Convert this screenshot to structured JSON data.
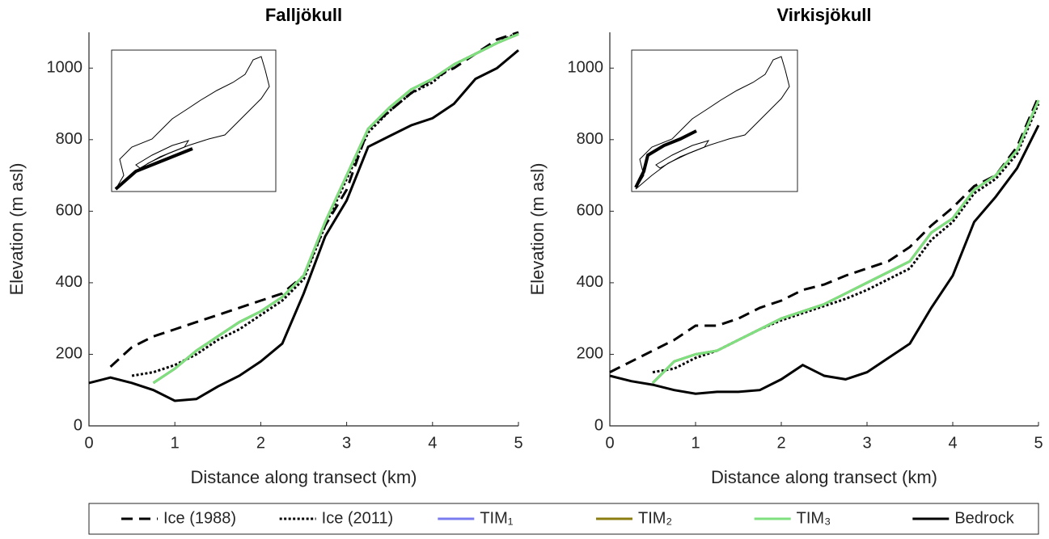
{
  "chart_data": [
    {
      "type": "line",
      "title": "Falljökull",
      "xlabel": "Distance along transect (km)",
      "ylabel": "Elevation (m asl)",
      "xlim": [
        0,
        5
      ],
      "ylim": [
        0,
        1100
      ],
      "xticks": [
        0,
        1,
        2,
        3,
        4,
        5
      ],
      "yticks": [
        0,
        200,
        400,
        600,
        800,
        1000
      ],
      "x": [
        0,
        0.25,
        0.5,
        0.75,
        1,
        1.25,
        1.5,
        1.75,
        2,
        2.25,
        2.5,
        2.75,
        3,
        3.25,
        3.5,
        3.75,
        4,
        4.25,
        4.5,
        4.75,
        5
      ],
      "series": [
        {
          "name": "Ice (1988)",
          "color": "#000000",
          "style": "dashed",
          "values": [
            null,
            165,
            220,
            250,
            270,
            290,
            310,
            330,
            350,
            370,
            420,
            560,
            660,
            830,
            880,
            930,
            970,
            1000,
            1040,
            1080,
            1100
          ]
        },
        {
          "name": "Ice (2011)",
          "color": "#000000",
          "style": "dotted",
          "values": [
            null,
            null,
            140,
            150,
            170,
            200,
            240,
            270,
            310,
            350,
            410,
            560,
            690,
            820,
            880,
            930,
            960,
            1010,
            1040,
            1070,
            1100
          ]
        },
        {
          "name": "TIM₁",
          "color": "#7b7bf0",
          "style": "solid",
          "values": [
            null,
            null,
            null,
            120,
            160,
            210,
            250,
            290,
            320,
            360,
            420,
            570,
            700,
            830,
            890,
            940,
            970,
            1010,
            1040,
            1070,
            1095
          ]
        },
        {
          "name": "TIM₂",
          "color": "#8b7d10",
          "style": "solid",
          "values": [
            null,
            null,
            null,
            120,
            160,
            210,
            250,
            290,
            320,
            360,
            420,
            570,
            700,
            830,
            890,
            940,
            970,
            1010,
            1040,
            1070,
            1095
          ]
        },
        {
          "name": "TIM₃",
          "color": "#7ee07e",
          "style": "solid",
          "values": [
            null,
            null,
            null,
            120,
            160,
            210,
            250,
            290,
            320,
            360,
            420,
            570,
            700,
            830,
            890,
            940,
            970,
            1010,
            1040,
            1070,
            1095
          ]
        },
        {
          "name": "Bedrock",
          "color": "#000000",
          "style": "solid",
          "values": [
            120,
            135,
            120,
            100,
            70,
            75,
            110,
            140,
            180,
            230,
            370,
            530,
            630,
            780,
            810,
            840,
            860,
            900,
            970,
            1000,
            1050
          ]
        }
      ]
    },
    {
      "type": "line",
      "title": "Virkisjökull",
      "xlabel": "Distance along transect (km)",
      "ylabel": "Elevation (m asl)",
      "xlim": [
        0,
        5
      ],
      "ylim": [
        0,
        1100
      ],
      "xticks": [
        0,
        1,
        2,
        3,
        4,
        5
      ],
      "yticks": [
        0,
        200,
        400,
        600,
        800,
        1000
      ],
      "x": [
        0,
        0.25,
        0.5,
        0.75,
        1,
        1.25,
        1.5,
        1.75,
        2,
        2.25,
        2.5,
        2.75,
        3,
        3.25,
        3.5,
        3.75,
        4,
        4.25,
        4.5,
        4.75,
        5
      ],
      "series": [
        {
          "name": "Ice (1988)",
          "color": "#000000",
          "style": "dashed",
          "values": [
            150,
            180,
            210,
            240,
            280,
            280,
            300,
            330,
            350,
            380,
            395,
            420,
            440,
            460,
            500,
            560,
            610,
            670,
            700,
            780,
            920
          ]
        },
        {
          "name": "Ice (2011)",
          "color": "#000000",
          "style": "dotted",
          "values": [
            null,
            null,
            150,
            160,
            190,
            210,
            240,
            270,
            295,
            315,
            335,
            355,
            380,
            410,
            440,
            520,
            570,
            650,
            690,
            760,
            900
          ]
        },
        {
          "name": "TIM₁",
          "color": "#7b7bf0",
          "style": "solid",
          "values": [
            null,
            null,
            120,
            180,
            200,
            210,
            240,
            270,
            300,
            320,
            340,
            370,
            400,
            430,
            460,
            540,
            580,
            660,
            700,
            770,
            910
          ]
        },
        {
          "name": "TIM₂",
          "color": "#8b7d10",
          "style": "solid",
          "values": [
            null,
            null,
            120,
            180,
            200,
            210,
            240,
            270,
            300,
            320,
            340,
            370,
            400,
            430,
            460,
            540,
            580,
            660,
            700,
            770,
            910
          ]
        },
        {
          "name": "TIM₃",
          "color": "#7ee07e",
          "style": "solid",
          "values": [
            null,
            null,
            120,
            180,
            200,
            210,
            240,
            270,
            300,
            320,
            340,
            370,
            400,
            430,
            460,
            540,
            580,
            660,
            700,
            770,
            910
          ]
        },
        {
          "name": "Bedrock",
          "color": "#000000",
          "style": "solid",
          "values": [
            140,
            125,
            115,
            100,
            90,
            95,
            95,
            100,
            130,
            170,
            140,
            130,
            150,
            190,
            230,
            330,
            420,
            570,
            640,
            720,
            840
          ]
        }
      ]
    }
  ]
}
